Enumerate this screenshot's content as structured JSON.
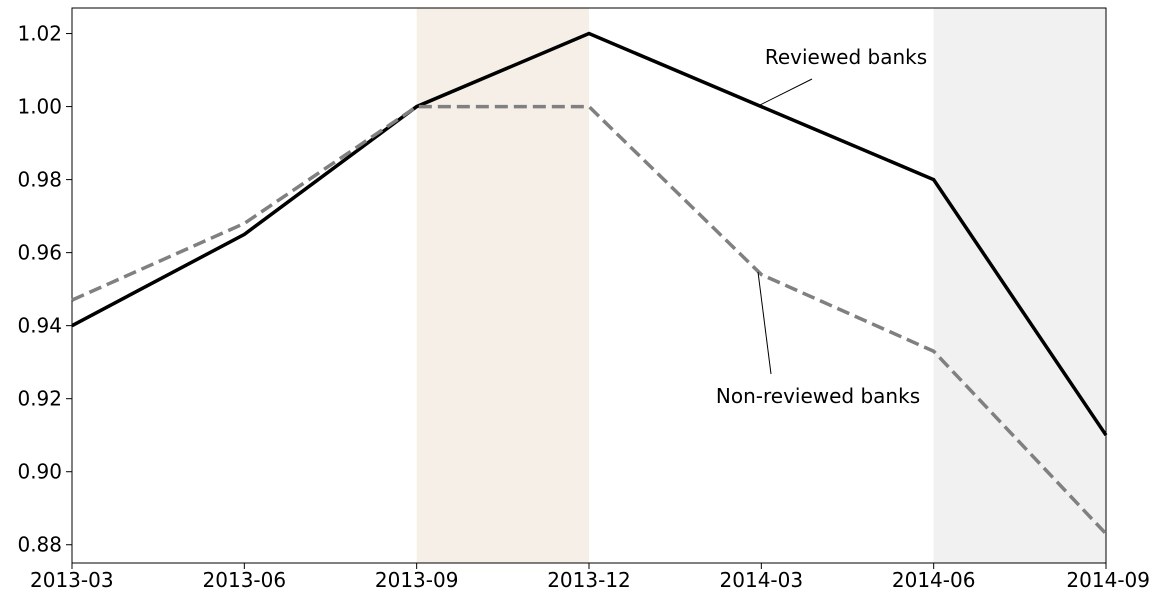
{
  "chart_data": {
    "type": "line",
    "x": [
      "2013-03",
      "2013-06",
      "2013-09",
      "2013-12",
      "2014-03",
      "2014-06",
      "2014-09"
    ],
    "ylim": [
      0.875,
      1.027
    ],
    "yticks": [
      "0.88",
      "0.90",
      "0.92",
      "0.94",
      "0.96",
      "0.98",
      "1.00",
      "1.02"
    ],
    "grid": false,
    "series": [
      {
        "name": "Reviewed banks",
        "values": [
          0.94,
          0.965,
          1.0,
          1.02,
          1.0,
          0.98,
          0.91
        ],
        "style": "solid",
        "color": "#000000"
      },
      {
        "name": "Non-reviewed banks",
        "values": [
          0.947,
          0.968,
          1.0,
          1.0,
          0.954,
          0.933,
          0.883
        ],
        "style": "dashed",
        "color": "#808080"
      }
    ],
    "shaded_regions": [
      {
        "from": "2013-09",
        "to": "2013-12",
        "color": "#f6efe8"
      },
      {
        "from": "2014-06",
        "to": "2014-09",
        "color": "#f1f1f1"
      }
    ],
    "annotations": [
      {
        "text": "Reviewed banks",
        "series": "Reviewed banks",
        "arrow_to_x": 4.0
      },
      {
        "text": "Non-reviewed banks",
        "series": "Non-reviewed banks",
        "arrow_to_x": 4.0
      }
    ]
  }
}
